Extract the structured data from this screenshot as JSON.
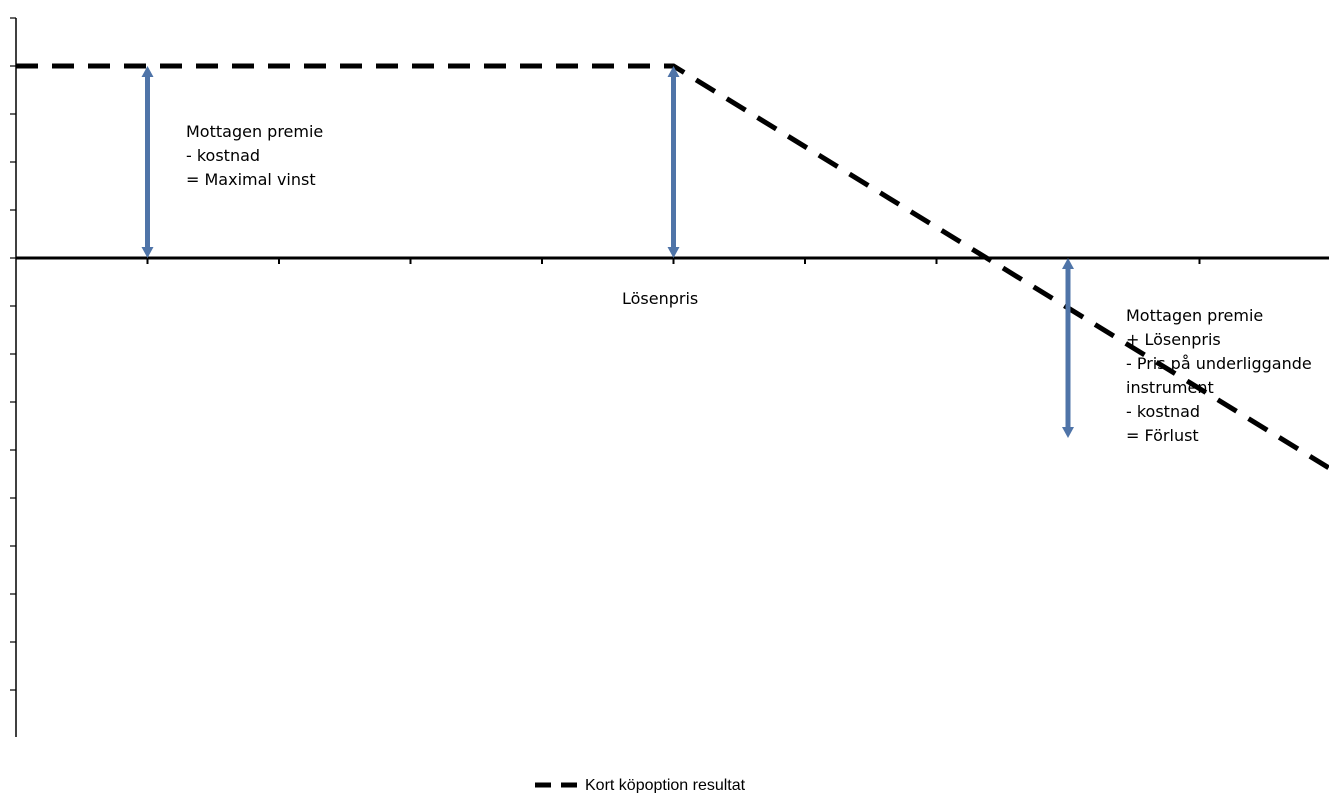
{
  "chart_data": {
    "type": "line",
    "title": "",
    "xlabel": "",
    "ylabel": "",
    "grid": false,
    "legend_placement": "bottom-center",
    "x_ticks": 10,
    "y_ticks": 15,
    "series": [
      {
        "name": "Kort köpoption resultat",
        "style": "dashed",
        "color": "#000000",
        "x": [
          0,
          5,
          10
        ],
        "y": [
          4,
          4,
          -4.4
        ]
      }
    ],
    "annotations": {
      "max_gain": [
        "Mottagen premie",
        "- kostnad",
        "= Maximal vinst"
      ],
      "strike_label": "Lösenpris",
      "loss": [
        "Mottagen premie",
        "+ Lösenpris",
        "- Pris på underliggande",
        "instrument",
        "- kostnad",
        "= Förlust"
      ]
    },
    "arrows": [
      {
        "x": 1,
        "from": 0,
        "to": 4
      },
      {
        "x": 5,
        "from": 0,
        "to": 4
      },
      {
        "x": 8,
        "from": 0,
        "to": -3.75
      }
    ],
    "arrow_color": "#4F74A8"
  }
}
